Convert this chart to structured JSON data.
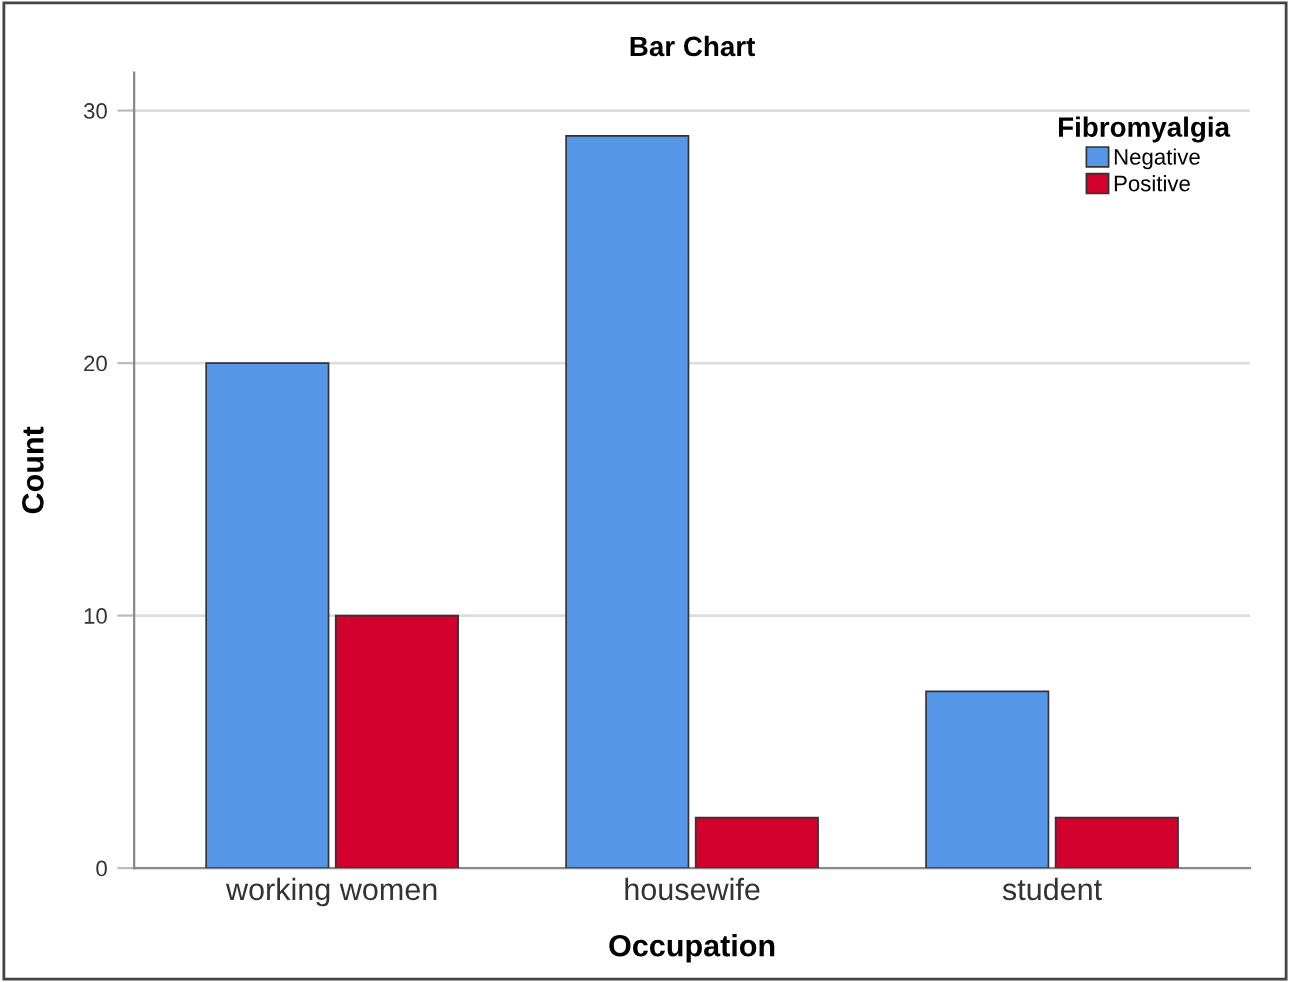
{
  "chart_data": {
    "type": "bar",
    "title": "Bar Chart",
    "xlabel": "Occupation",
    "ylabel": "Count",
    "legend_title": "Fibromyalgia",
    "categories": [
      "working women",
      "housewife",
      "student"
    ],
    "series": [
      {
        "name": "Negative",
        "color": "#5596e6",
        "values": [
          20,
          29,
          7
        ]
      },
      {
        "name": "Positive",
        "color": "#d1002c",
        "values": [
          10,
          2,
          2
        ]
      }
    ],
    "ylim": [
      0,
      31.5
    ],
    "yticks": [
      0,
      10,
      20,
      30
    ],
    "grid": "y",
    "legend": "top right"
  }
}
